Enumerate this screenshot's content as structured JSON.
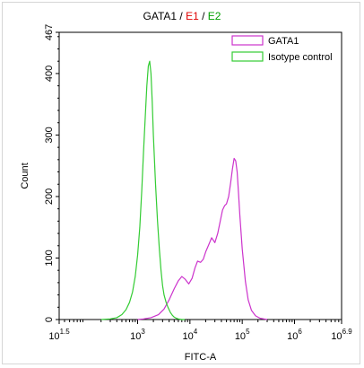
{
  "chart_data": {
    "type": "area",
    "title_parts": [
      {
        "text": "GATA1",
        "color": "#000000"
      },
      {
        "text": " / ",
        "color": "#000000"
      },
      {
        "text": "E1",
        "color": "#e00000"
      },
      {
        "text": " / ",
        "color": "#000000"
      },
      {
        "text": "E2",
        "color": "#00a000"
      }
    ],
    "xlabel": "FITC-A",
    "ylabel": "Count",
    "x_scale": "log",
    "xlim": [
      31.6,
      7943000
    ],
    "ylim": [
      0,
      467
    ],
    "x_ticks": [
      {
        "base": "10",
        "exp": "1.5",
        "value": 31.6
      },
      {
        "base": "10",
        "exp": "3",
        "value": 1000
      },
      {
        "base": "10",
        "exp": "4",
        "value": 10000
      },
      {
        "base": "10",
        "exp": "5",
        "value": 100000
      },
      {
        "base": "10",
        "exp": "6",
        "value": 1000000
      },
      {
        "base": "10",
        "exp": "6.9",
        "value": 7943000
      }
    ],
    "y_ticks": [
      "0",
      "100",
      "200",
      "300",
      "400",
      "467"
    ],
    "legend_position": "top-right",
    "series": [
      {
        "name": "GATA1",
        "color": "#cc33cc",
        "x": [
          1000,
          1300,
          1800,
          2500,
          3200,
          4000,
          5000,
          6000,
          7000,
          8000,
          9500,
          11000,
          12500,
          14000,
          16000,
          18000,
          20000,
          23000,
          26000,
          30000,
          34000,
          38000,
          42000,
          46000,
          50000,
          55000,
          60000,
          65000,
          70000,
          75000,
          80000,
          85000,
          90000,
          100000,
          115000,
          130000,
          150000,
          180000,
          220000,
          260000,
          300000
        ],
        "y": [
          0,
          1,
          3,
          8,
          17,
          32,
          50,
          63,
          70,
          66,
          58,
          67,
          84,
          95,
          93,
          98,
          110,
          122,
          133,
          125,
          140,
          160,
          178,
          185,
          188,
          200,
          222,
          245,
          262,
          258,
          240,
          205,
          170,
          115,
          62,
          32,
          15,
          6,
          2,
          1,
          0
        ]
      },
      {
        "name": "Isotype control",
        "color": "#33cc33",
        "x": [
          200,
          300,
          400,
          500,
          600,
          700,
          800,
          900,
          1000,
          1100,
          1200,
          1300,
          1400,
          1500,
          1600,
          1700,
          1800,
          1900,
          2000,
          2200,
          2400,
          2600,
          2800,
          3000,
          3200,
          3500,
          3800,
          4200,
          4600,
          5000,
          5500,
          6000,
          7000,
          8000
        ],
        "y": [
          0,
          1,
          3,
          8,
          16,
          28,
          45,
          70,
          105,
          150,
          210,
          275,
          330,
          380,
          412,
          420,
          400,
          355,
          300,
          220,
          160,
          115,
          80,
          55,
          40,
          28,
          20,
          12,
          7,
          4,
          2,
          1,
          0,
          0
        ]
      }
    ]
  }
}
